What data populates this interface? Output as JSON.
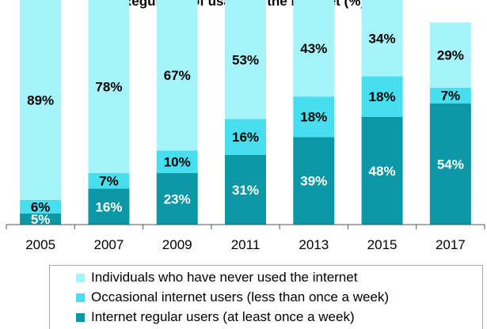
{
  "title": "Regularity of usage of the internet (%)",
  "chart_data": {
    "type": "bar",
    "stacked": true,
    "categories": [
      "2005",
      "2007",
      "2009",
      "2011",
      "2013",
      "2015",
      "2017"
    ],
    "ylim": [
      0,
      100
    ],
    "grid": false,
    "legend_position": "bottom",
    "series": [
      {
        "name": "Internet regular users (at least once a week)",
        "color": "#0a97a6",
        "values": [
          5,
          16,
          23,
          31,
          39,
          48,
          54
        ],
        "labels": [
          "5%",
          "16%",
          "23%",
          "31%",
          "39%",
          "48%",
          "54%"
        ],
        "label_color": "#ffffff"
      },
      {
        "name": "Occasional internet users (less than once a week)",
        "color": "#47dff0",
        "values": [
          6,
          7,
          10,
          16,
          18,
          18,
          7
        ],
        "labels": [
          "6%",
          "7%",
          "10%",
          "16%",
          "18%",
          "18%",
          "7%"
        ],
        "label_color": "#000000"
      },
      {
        "name": "Individuals who have never used the internet",
        "color": "#a6f4fb",
        "values": [
          89,
          78,
          67,
          53,
          43,
          34,
          29
        ],
        "labels": [
          "89%",
          "78%",
          "67%",
          "53%",
          "43%",
          "34%",
          "29%"
        ],
        "label_color": "#000000"
      }
    ]
  },
  "legend": {
    "items": [
      {
        "label": "Individuals who have never used the internet",
        "color": "#a6f4fb"
      },
      {
        "label": "Occasional internet users (less than once a week)",
        "color": "#47dff0"
      },
      {
        "label": "Internet regular users (at least once a week)",
        "color": "#0a97a6"
      }
    ]
  }
}
